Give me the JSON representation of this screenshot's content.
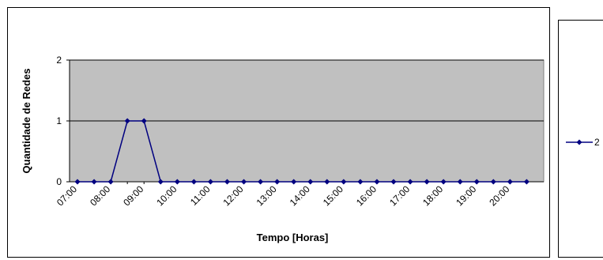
{
  "chart_data": {
    "type": "line",
    "title": "",
    "xlabel": "Tempo [Horas]",
    "ylabel": "Quantidade de Redes",
    "ylim": [
      0,
      2
    ],
    "yticks": [
      "0",
      "1",
      "2"
    ],
    "xtick_labels": [
      "07:00",
      "08:00",
      "09:00",
      "10:00",
      "11:00",
      "12:00",
      "13:00",
      "14:00",
      "15:00",
      "16:00",
      "17:00",
      "18:00",
      "19:00",
      "20:00"
    ],
    "x": [
      "07:00",
      "07:30",
      "08:00",
      "08:30",
      "09:00",
      "09:30",
      "10:00",
      "10:30",
      "11:00",
      "11:30",
      "12:00",
      "12:30",
      "13:00",
      "13:30",
      "14:00",
      "14:30",
      "15:00",
      "15:30",
      "16:00",
      "16:30",
      "17:00",
      "17:30",
      "18:00",
      "18:30",
      "19:00",
      "19:30",
      "20:00",
      "20:30"
    ],
    "series": [
      {
        "name": "2",
        "color": "#000080",
        "values": [
          0,
          0,
          0,
          1,
          1,
          0,
          0,
          0,
          0,
          0,
          0,
          0,
          0,
          0,
          0,
          0,
          0,
          0,
          0,
          0,
          0,
          0,
          0,
          0,
          0,
          0,
          0,
          0
        ]
      }
    ],
    "grid": true,
    "legend": "right",
    "plot_background": "#c0c0c0"
  }
}
